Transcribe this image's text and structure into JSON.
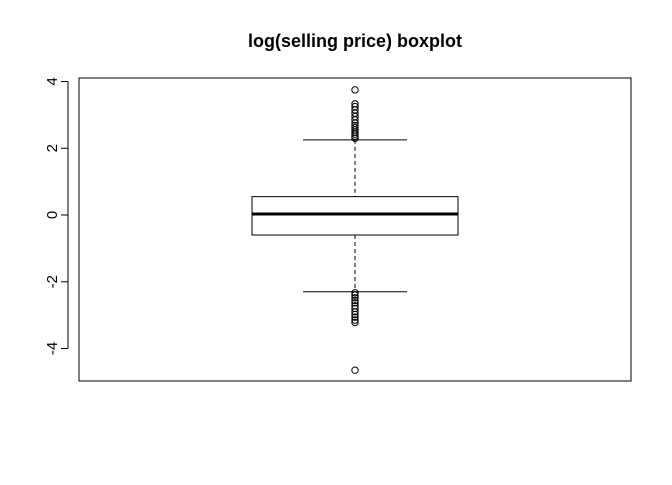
{
  "chart_data": {
    "type": "boxplot",
    "title": "log(selling price) boxplot",
    "xlabel": "",
    "ylabel": "",
    "ylim": [
      -5,
      4
    ],
    "yticks": [
      -4,
      -2,
      0,
      2,
      4
    ],
    "ytick_labels": [
      "-4",
      "-2",
      "0",
      "2",
      "4"
    ],
    "grid": false,
    "series": [
      {
        "whisker_low": -2.3,
        "q1": -0.6,
        "median": 0.03,
        "q3": 0.55,
        "whisker_high": 2.25,
        "outliers_high": [
          2.3,
          2.36,
          2.42,
          2.48,
          2.55,
          2.62,
          2.68,
          2.75,
          2.85,
          2.95,
          3.05,
          3.15,
          3.25,
          3.33,
          3.75
        ],
        "outliers_low": [
          -2.33,
          -2.4,
          -2.48,
          -2.56,
          -2.63,
          -2.72,
          -2.8,
          -2.9,
          -2.98,
          -3.06,
          -3.15,
          -3.22,
          -4.65
        ]
      }
    ]
  }
}
